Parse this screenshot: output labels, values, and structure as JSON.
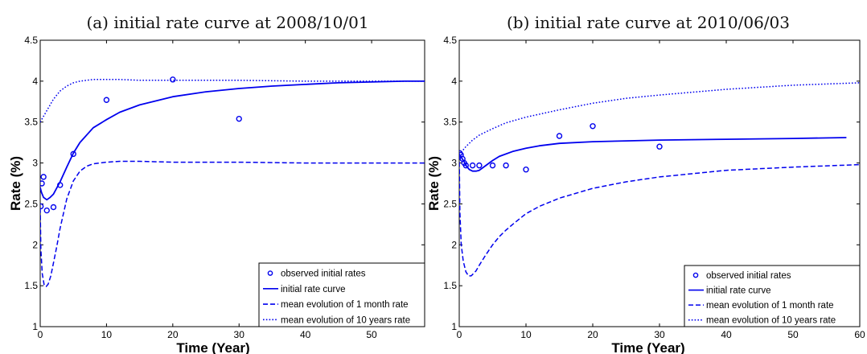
{
  "chart_data": [
    {
      "type": "line",
      "title": "(a) initial rate curve at 2008/10/01",
      "xlabel": "Time (Year)",
      "ylabel": "Rate (%)",
      "xlim": [
        0,
        58
      ],
      "ylim": [
        1,
        4.5
      ],
      "xticks": [
        "0",
        "10",
        "20",
        "30",
        "40",
        "50"
      ],
      "yticks": [
        "1",
        "1.5",
        "2",
        "2.5",
        "3",
        "3.5",
        "4",
        "4.5"
      ],
      "xtick_values": [
        0,
        10,
        20,
        30,
        40,
        50
      ],
      "ytick_values": [
        1,
        1.5,
        2,
        2.5,
        3,
        3.5,
        4,
        4.5
      ],
      "grid": false,
      "legend_position": "bottom-right",
      "color": "#0000ee",
      "series": [
        {
          "name": "observed initial rates",
          "style": "markers",
          "x": [
            0.08,
            0.25,
            0.5,
            1,
            2,
            3,
            5,
            10,
            20,
            30
          ],
          "y": [
            2.47,
            2.75,
            2.83,
            2.42,
            2.46,
            2.73,
            3.11,
            3.77,
            4.02,
            3.54
          ]
        },
        {
          "name": "initial rate curve",
          "style": "solid",
          "x": [
            0,
            0.2,
            0.5,
            1,
            1.5,
            2,
            3,
            4,
            5,
            6,
            8,
            10,
            12,
            15,
            20,
            25,
            30,
            35,
            40,
            45,
            50,
            55,
            58
          ],
          "y": [
            2.7,
            2.64,
            2.58,
            2.55,
            2.58,
            2.62,
            2.77,
            2.95,
            3.12,
            3.25,
            3.43,
            3.53,
            3.62,
            3.71,
            3.81,
            3.87,
            3.91,
            3.94,
            3.96,
            3.98,
            3.99,
            4.0,
            4.0
          ]
        },
        {
          "name": "mean evolution of 1 month rate",
          "style": "dashed",
          "x": [
            0,
            0.1,
            0.3,
            0.6,
            0.9,
            1.2,
            1.6,
            2,
            2.5,
            3,
            4,
            5,
            6,
            7,
            8,
            10,
            12,
            15,
            20,
            30,
            40,
            50,
            58
          ],
          "y": [
            2.45,
            1.95,
            1.65,
            1.51,
            1.49,
            1.52,
            1.62,
            1.78,
            1.98,
            2.2,
            2.56,
            2.78,
            2.9,
            2.96,
            2.99,
            3.01,
            3.02,
            3.02,
            3.01,
            3.01,
            3.0,
            3.0,
            3.0
          ]
        },
        {
          "name": "mean evolution of 10 years rate",
          "style": "dotted",
          "x": [
            0,
            0.5,
            1,
            2,
            3,
            4,
            5,
            6,
            7,
            8,
            10,
            12,
            15,
            20,
            30,
            40,
            50,
            58
          ],
          "y": [
            3.5,
            3.57,
            3.64,
            3.78,
            3.88,
            3.94,
            3.98,
            4.0,
            4.01,
            4.02,
            4.02,
            4.02,
            4.01,
            4.01,
            4.01,
            4.0,
            4.0,
            4.0
          ]
        }
      ]
    },
    {
      "type": "line",
      "title": "(b) initial rate curve at 2010/06/03",
      "xlabel": "Time (Year)",
      "ylabel": "Rate (%)",
      "xlim": [
        0,
        60
      ],
      "ylim": [
        1,
        4.5
      ],
      "xticks": [
        "0",
        "10",
        "20",
        "30",
        "40",
        "50",
        "60"
      ],
      "yticks": [
        "1",
        "1.5",
        "2",
        "2.5",
        "3",
        "3.5",
        "4",
        "4.5"
      ],
      "xtick_values": [
        0,
        10,
        20,
        30,
        40,
        50,
        60
      ],
      "ytick_values": [
        1,
        1.5,
        2,
        2.5,
        3,
        3.5,
        4,
        4.5
      ],
      "grid": false,
      "legend_position": "bottom-right",
      "color": "#0000ee",
      "series": [
        {
          "name": "observed initial rates",
          "style": "markers",
          "x": [
            0.08,
            0.25,
            0.5,
            0.75,
            1,
            2,
            3,
            5,
            7,
            10,
            15,
            20,
            30
          ],
          "y": [
            3.12,
            3.1,
            3.05,
            3.0,
            2.97,
            2.97,
            2.97,
            2.97,
            2.97,
            2.92,
            3.33,
            3.45,
            3.2
          ]
        },
        {
          "name": "initial rate curve",
          "style": "solid",
          "x": [
            0,
            0.3,
            0.7,
            1,
            1.5,
            2,
            2.5,
            3,
            4,
            5,
            6,
            8,
            10,
            12,
            15,
            20,
            25,
            30,
            40,
            50,
            58
          ],
          "y": [
            3.1,
            3.07,
            3.02,
            2.97,
            2.92,
            2.9,
            2.9,
            2.91,
            2.97,
            3.03,
            3.08,
            3.14,
            3.18,
            3.21,
            3.24,
            3.26,
            3.27,
            3.28,
            3.29,
            3.3,
            3.31
          ]
        },
        {
          "name": "mean evolution of 1 month rate",
          "style": "dashed",
          "x": [
            0,
            0.1,
            0.3,
            0.6,
            1,
            1.4,
            1.8,
            2.5,
            3,
            4,
            5,
            6,
            7,
            8,
            10,
            12,
            15,
            20,
            25,
            30,
            40,
            50,
            60
          ],
          "y": [
            3.1,
            2.4,
            2.0,
            1.8,
            1.67,
            1.62,
            1.62,
            1.68,
            1.75,
            1.88,
            2.0,
            2.1,
            2.18,
            2.25,
            2.38,
            2.47,
            2.57,
            2.69,
            2.77,
            2.83,
            2.91,
            2.95,
            2.98
          ]
        },
        {
          "name": "mean evolution of 10 years rate",
          "style": "dotted",
          "x": [
            0,
            0.5,
            1,
            2,
            3,
            4,
            5,
            7,
            10,
            15,
            20,
            25,
            30,
            40,
            50,
            60
          ],
          "y": [
            3.1,
            3.15,
            3.2,
            3.28,
            3.34,
            3.38,
            3.42,
            3.49,
            3.56,
            3.65,
            3.73,
            3.79,
            3.83,
            3.9,
            3.95,
            3.98
          ]
        }
      ]
    }
  ]
}
